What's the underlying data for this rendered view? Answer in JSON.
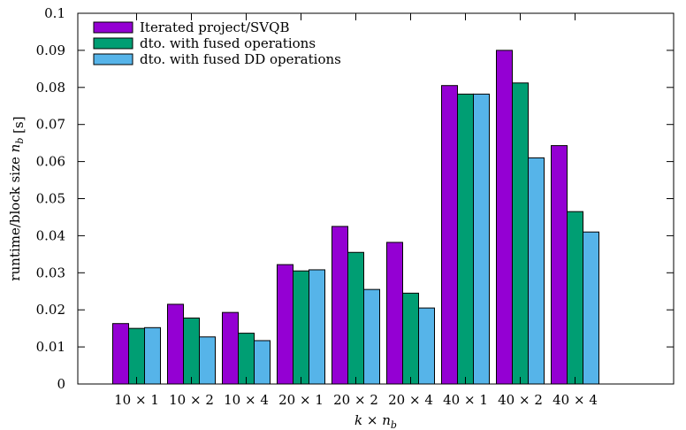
{
  "chart_data": {
    "type": "bar",
    "categories": [
      "10 × 1",
      "10 × 2",
      "10 × 4",
      "20 × 1",
      "20 × 2",
      "20 × 4",
      "40 × 1",
      "40 × 2",
      "40 × 4"
    ],
    "series": [
      {
        "name": "Iterated project/SVQB",
        "color": "#9400d3",
        "values": [
          0.0163,
          0.0215,
          0.0193,
          0.0322,
          0.0425,
          0.0382,
          0.0805,
          0.09,
          0.0643
        ]
      },
      {
        "name": "dto. with fused operations",
        "color": "#009e73",
        "values": [
          0.015,
          0.0178,
          0.0137,
          0.0305,
          0.0355,
          0.0245,
          0.0782,
          0.0812,
          0.0465
        ]
      },
      {
        "name": "dto. with fused DD operations",
        "color": "#56b4e9",
        "values": [
          0.0152,
          0.0127,
          0.0117,
          0.0308,
          0.0255,
          0.0205,
          0.0782,
          0.061,
          0.041
        ]
      }
    ],
    "xlabel": "k × n_b",
    "ylabel": "runtime/block size n_b [s]",
    "ylim": [
      0,
      0.1
    ],
    "yticks": [
      "0",
      "0.01",
      "0.02",
      "0.03",
      "0.04",
      "0.05",
      "0.06",
      "0.07",
      "0.08",
      "0.09",
      "0.1"
    ],
    "legend_position": "top-left",
    "grid": false
  }
}
